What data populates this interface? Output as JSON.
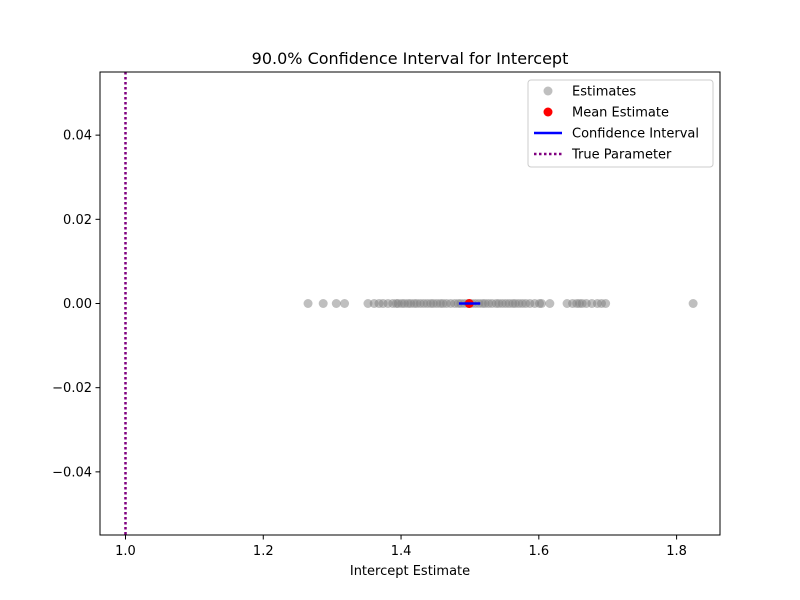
{
  "chart_data": {
    "type": "scatter",
    "title": "90.0% Confidence Interval for Intercept",
    "xlabel": "Intercept Estimate",
    "ylabel": "",
    "xlim": [
      0.963,
      1.863
    ],
    "ylim": [
      -0.055,
      0.055
    ],
    "x_ticks": [
      1.0,
      1.2,
      1.4,
      1.6,
      1.8
    ],
    "x_tick_labels": [
      "1.0",
      "1.2",
      "1.4",
      "1.6",
      "1.8"
    ],
    "y_ticks": [
      0.04,
      0.02,
      0.0,
      -0.02,
      -0.04
    ],
    "y_tick_labels": [
      "0.04",
      "0.02",
      "0.00",
      "−0.02",
      "−0.04"
    ],
    "grid": false,
    "legend_position": "top-right",
    "series": [
      {
        "name": "Estimates",
        "kind": "scatter",
        "color": "#808080",
        "x": [
          1.265,
          1.287,
          1.306,
          1.318,
          1.352,
          1.361,
          1.368,
          1.374,
          1.381,
          1.388,
          1.393,
          1.396,
          1.401,
          1.405,
          1.41,
          1.414,
          1.419,
          1.423,
          1.428,
          1.433,
          1.438,
          1.443,
          1.447,
          1.452,
          1.457,
          1.461,
          1.466,
          1.472,
          1.478,
          1.483,
          1.487,
          1.492,
          1.497,
          1.503,
          1.508,
          1.513,
          1.518,
          1.522,
          1.527,
          1.532,
          1.538,
          1.542,
          1.547,
          1.552,
          1.557,
          1.562,
          1.566,
          1.571,
          1.576,
          1.581,
          1.587,
          1.594,
          1.601,
          1.604,
          1.616,
          1.641,
          1.649,
          1.655,
          1.659,
          1.663,
          1.669,
          1.677,
          1.685,
          1.691,
          1.697,
          1.824
        ],
        "y": [
          0,
          0,
          0,
          0,
          0,
          0,
          0,
          0,
          0,
          0,
          0,
          0,
          0,
          0,
          0,
          0,
          0,
          0,
          0,
          0,
          0,
          0,
          0,
          0,
          0,
          0,
          0,
          0,
          0,
          0,
          0,
          0,
          0,
          0,
          0,
          0,
          0,
          0,
          0,
          0,
          0,
          0,
          0,
          0,
          0,
          0,
          0,
          0,
          0,
          0,
          0,
          0,
          0,
          0,
          0,
          0,
          0,
          0,
          0,
          0,
          0,
          0,
          0,
          0,
          0,
          0
        ]
      },
      {
        "name": "Mean Estimate",
        "kind": "scatter",
        "color": "#ff0000",
        "x": [
          1.499
        ],
        "y": [
          0
        ]
      },
      {
        "name": "Confidence Interval",
        "kind": "segment",
        "color": "#0000ff",
        "x": [
          1.484,
          1.515
        ],
        "y": [
          0,
          0
        ]
      },
      {
        "name": "True Parameter",
        "kind": "vline",
        "color": "#800080",
        "x": 1.0
      }
    ]
  }
}
